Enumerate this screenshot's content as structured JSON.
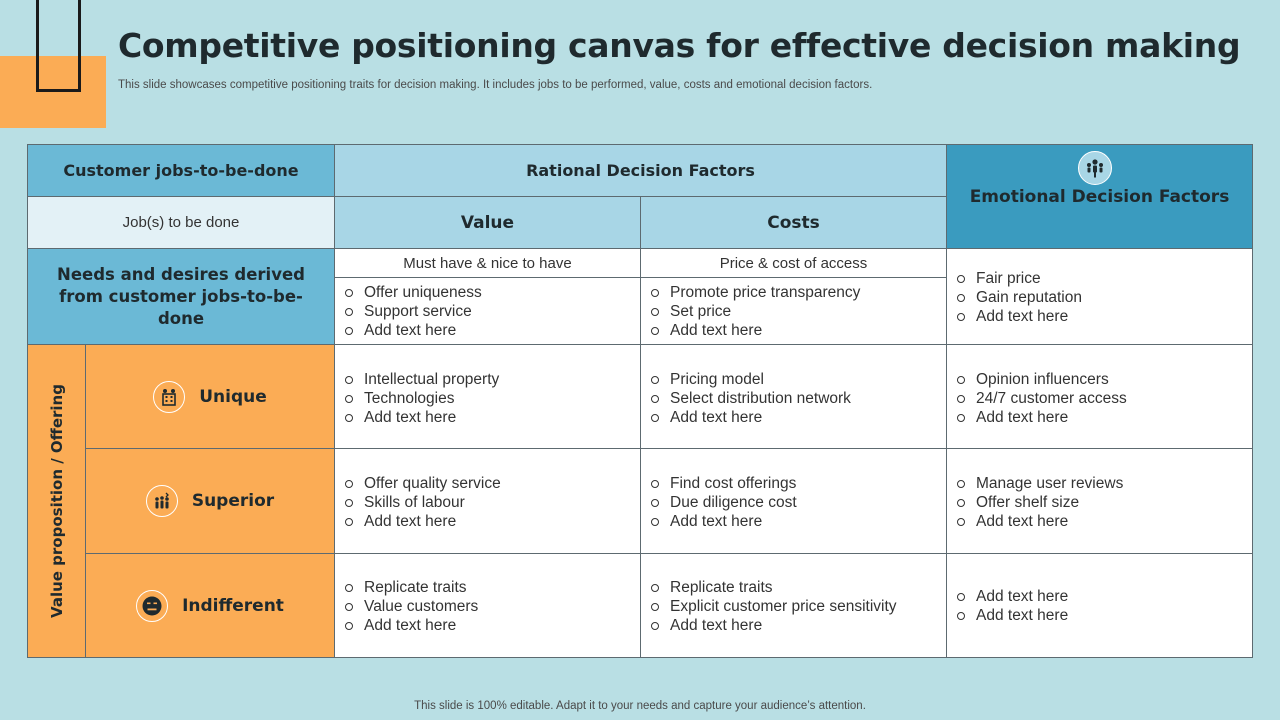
{
  "title": "Competitive positioning canvas for effective decision making",
  "subtitle": "This slide showcases competitive positioning traits for decision making. It includes jobs to be performed, value, costs and emotional decision factors.",
  "footer": "This slide is 100% editable. Adapt it to your needs and capture your audience’s attention.",
  "table": {
    "customer_jobs_header": "Customer jobs-to-be-done",
    "rational_header": "Rational  Decision Factors",
    "emotional_header": "Emotional Decision Factors",
    "jobs_to_be_done": "Job(s) to be done",
    "value_header": "Value",
    "costs_header": "Costs",
    "needs_label": "Needs and desires derived from customer jobs-to-be-done",
    "value_sub": "Must have & nice to have",
    "costs_sub": "Price & cost of access",
    "needs_value_items": [
      "Offer uniqueness",
      "Support service",
      "Add text here"
    ],
    "needs_costs_items": [
      "Promote price transparency",
      "Set price",
      "Add text here"
    ],
    "needs_emotional_items": [
      "Fair price",
      "Gain reputation",
      "Add text here"
    ],
    "value_prop_label": "Value proposition / Offering",
    "rows": [
      {
        "label": "Unique",
        "icon": "building-icon",
        "value_items": [
          "Intellectual  property",
          "Technologies",
          "Add text here"
        ],
        "costs_items": [
          "Pricing model",
          "Select distribution network",
          "Add text here"
        ],
        "emotional_items": [
          "Opinion influencers",
          "24/7 customer access",
          "Add text here"
        ]
      },
      {
        "label": "Superior",
        "icon": "team-icon",
        "value_items": [
          "Offer quality service",
          "Skills of labour",
          "Add text here"
        ],
        "costs_items": [
          "Find cost offerings",
          "Due diligence cost",
          "Add text here"
        ],
        "emotional_items": [
          "Manage user reviews",
          "Offer shelf size",
          "Add text here"
        ]
      },
      {
        "label": "Indifferent",
        "icon": "neutral-face-icon",
        "value_items": [
          "Replicate traits",
          "Value customers",
          "Add text here"
        ],
        "costs_items": [
          "Replicate traits",
          "Explicit customer price sensitivity",
          "Add text here"
        ],
        "emotional_items": [
          "Add text here",
          "Add text here"
        ]
      }
    ]
  },
  "colors": {
    "background": "#b9dfe4",
    "accent_orange": "#fbac55",
    "header_dark_blue": "#3a9bbf",
    "header_mid_blue": "#6bb9d6",
    "header_light_blue": "#a8d6e6"
  }
}
